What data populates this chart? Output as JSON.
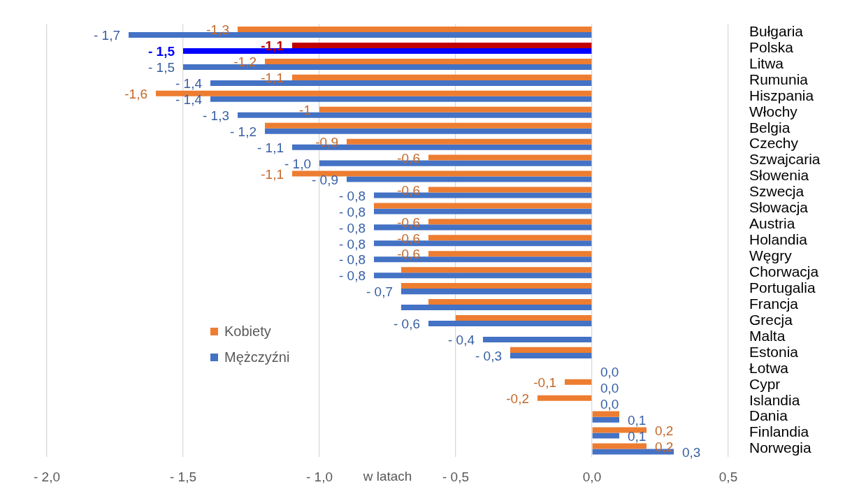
{
  "chart_data": {
    "type": "bar",
    "orientation": "horizontal",
    "xlabel": "w latach",
    "categories": [
      "Bułgaria",
      "Polska",
      "Litwa",
      "Rumunia",
      "Hiszpania",
      "Włochy",
      "Belgia",
      "Czechy",
      "Szwajcaria",
      "Słowenia",
      "Szwecja",
      "Słowacja",
      "Austria",
      "Holandia",
      "Węgry",
      "Chorwacja",
      "Portugalia",
      "Francja",
      "Grecja",
      "Malta",
      "Estonia",
      "Łotwa",
      "Cypr",
      "Islandia",
      "Dania",
      "Finlandia",
      "Norwegia"
    ],
    "series": [
      {
        "name": "Kobiety",
        "color": "#ed7d31",
        "colors": [
          "#ed7d31",
          "#c00000",
          "#ed7d31",
          "#ed7d31",
          "#ed7d31",
          "#ed7d31",
          "#ed7d31",
          "#ed7d31",
          "#ed7d31",
          "#ed7d31",
          "#ed7d31",
          "#ed7d31",
          "#ed7d31",
          "#ed7d31",
          "#ed7d31",
          "#ed7d31",
          "#ed7d31",
          "#ed7d31",
          "#ed7d31",
          "#ed7d31",
          "#ed7d31",
          "#ed7d31",
          "#ed7d31",
          "#ed7d31",
          "#ed7d31",
          "#ed7d31",
          "#ed7d31"
        ],
        "values": [
          -1.3,
          -1.1,
          -1.2,
          -1.1,
          -1.6,
          -1,
          -1.2,
          -0.9,
          -0.6,
          -1.1,
          -0.6,
          -0.8,
          -0.6,
          -0.6,
          -0.6,
          -0.7,
          -0.7,
          -0.6,
          -0.5,
          null,
          -0.3,
          null,
          -0.1,
          -0.2,
          0.1,
          0.2,
          0.2
        ],
        "value_labels": [
          "-1,3",
          "-1,1",
          "-1,2",
          "-1,1",
          "-1,6",
          "-1",
          null,
          "-0,9",
          "-0,6",
          "-1,1",
          "-0,6",
          null,
          "-0,6",
          "-0,6",
          "-0,6",
          null,
          null,
          null,
          null,
          null,
          null,
          null,
          "-0,1",
          "-0,2",
          null,
          "0,2",
          "0,2"
        ]
      },
      {
        "name": "Mężczyźni",
        "color": "#4472c4",
        "colors": [
          "#4472c4",
          "#0000ff",
          "#4472c4",
          "#4472c4",
          "#4472c4",
          "#4472c4",
          "#4472c4",
          "#4472c4",
          "#4472c4",
          "#4472c4",
          "#4472c4",
          "#4472c4",
          "#4472c4",
          "#4472c4",
          "#4472c4",
          "#4472c4",
          "#4472c4",
          "#4472c4",
          "#4472c4",
          "#4472c4",
          "#4472c4",
          "#4472c4",
          "#4472c4",
          "#4472c4",
          "#4472c4",
          "#4472c4",
          "#4472c4"
        ],
        "values": [
          -1.7,
          -1.5,
          -1.5,
          -1.4,
          -1.4,
          -1.3,
          -1.2,
          -1.1,
          -1.0,
          -0.9,
          -0.8,
          -0.8,
          -0.8,
          -0.8,
          -0.8,
          -0.8,
          -0.7,
          -0.7,
          -0.6,
          -0.4,
          -0.3,
          0,
          0,
          0,
          0.1,
          0.1,
          0.3
        ],
        "value_labels": [
          "- 1,7",
          "- 1,5",
          "- 1,5",
          "- 1,4",
          "- 1,4",
          "- 1,3",
          "- 1,2",
          "- 1,1",
          "- 1,0",
          "- 0,9",
          "- 0,8",
          "- 0,8",
          "- 0,8",
          "- 0,8",
          "- 0,8",
          "- 0,8",
          "- 0,7",
          null,
          "- 0,6",
          "- 0,4",
          "- 0,3",
          "0,0",
          "0,0",
          "0,0",
          "0,1",
          "0,1",
          "0,3"
        ]
      }
    ],
    "xlim": [
      -2,
      0.5
    ],
    "xticks": [
      {
        "value": -2,
        "label": "- 2,0"
      },
      {
        "value": -1.5,
        "label": "- 1,5"
      },
      {
        "value": -1,
        "label": "- 1,0"
      },
      {
        "value": -0.5,
        "label": "- 0,5"
      },
      {
        "value": 0,
        "label": "0,0"
      },
      {
        "value": 0.5,
        "label": "0,5"
      }
    ],
    "grid": "x",
    "legend": "bottom left"
  }
}
